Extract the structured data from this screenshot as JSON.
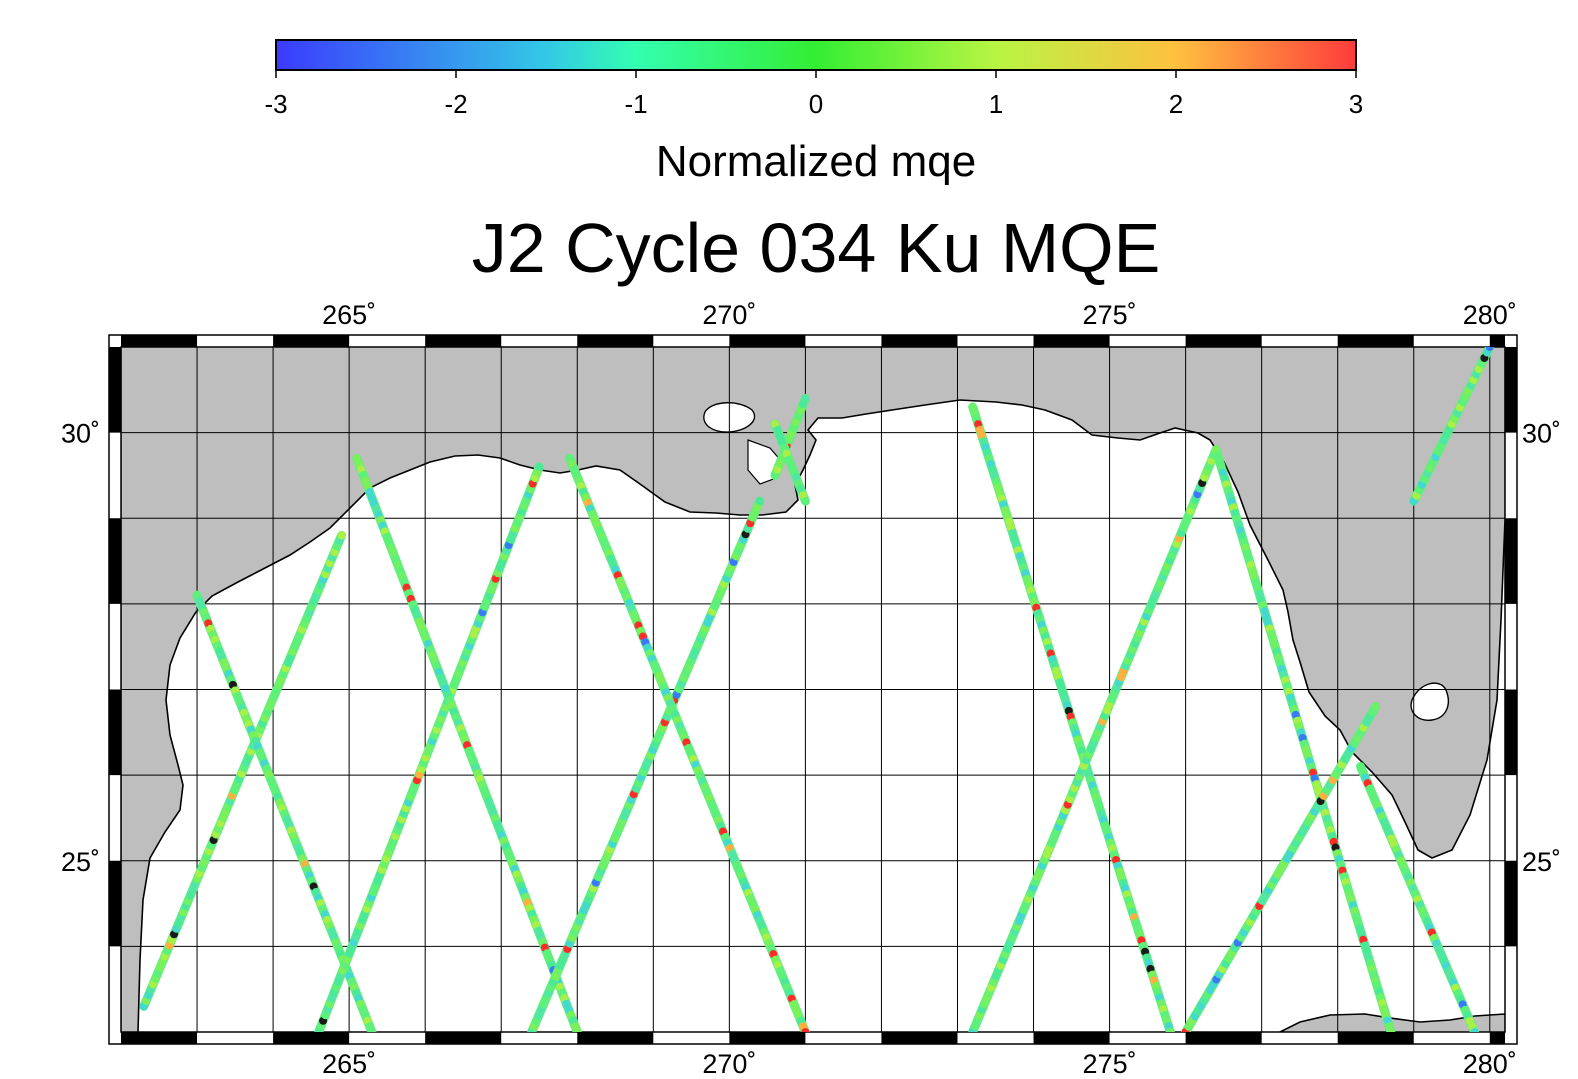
{
  "title": "J2 Cycle 034 Ku MQE",
  "colorbar": {
    "label": "Normalized mqe",
    "min": -3,
    "max": 3,
    "ticks": [
      "-3",
      "-2",
      "-1",
      "0",
      "1",
      "2",
      "3"
    ],
    "stops": [
      {
        "value": -3,
        "color": "#3b3bff"
      },
      {
        "value": -1.5,
        "color": "#33c8e6"
      },
      {
        "value": -1,
        "color": "#33ffb0"
      },
      {
        "value": 0,
        "color": "#33ee33"
      },
      {
        "value": 1,
        "color": "#b8f542"
      },
      {
        "value": 2,
        "color": "#ffc040"
      },
      {
        "value": 3,
        "color": "#ff3b3b"
      }
    ]
  },
  "map": {
    "lon_range": [
      262,
      280.2
    ],
    "lat_range": [
      23,
      31
    ],
    "lon_ticks": [
      {
        "value": 265,
        "label": "265˚"
      },
      {
        "value": 270,
        "label": "270˚"
      },
      {
        "value": 275,
        "label": "275˚"
      },
      {
        "value": 280,
        "label": "280˚"
      }
    ],
    "lat_ticks": [
      {
        "value": 30,
        "label": "30˚"
      },
      {
        "value": 25,
        "label": "25˚"
      }
    ],
    "colors": {
      "land": "#bebebe",
      "water": "#ffffff",
      "coastline": "#000000",
      "grid": "#000000",
      "track_base": "#5ef07a"
    }
  },
  "chart_data": {
    "type": "scatter",
    "variable": "Normalized mqe",
    "tracks": [
      {
        "lon": [
          262.3,
          264.9
        ],
        "lat": [
          23.3,
          28.8
        ]
      },
      {
        "lon": [
          263.0,
          265.3
        ],
        "lat": [
          28.1,
          23.0
        ]
      },
      {
        "lon": [
          264.6,
          267.5
        ],
        "lat": [
          23.0,
          29.6
        ]
      },
      {
        "lon": [
          265.1,
          268.0
        ],
        "lat": [
          29.7,
          23.0
        ]
      },
      {
        "lon": [
          267.4,
          270.4
        ],
        "lat": [
          23.0,
          29.2
        ]
      },
      {
        "lon": [
          267.9,
          271.0
        ],
        "lat": [
          29.7,
          23.0
        ]
      },
      {
        "lon": [
          270.6,
          271.0
        ],
        "lat": [
          29.5,
          30.4
        ]
      },
      {
        "lon": [
          270.6,
          271.0
        ],
        "lat": [
          30.1,
          29.2
        ]
      },
      {
        "lon": [
          273.2,
          275.8
        ],
        "lat": [
          30.3,
          23.0
        ]
      },
      {
        "lon": [
          273.2,
          276.4
        ],
        "lat": [
          23.0,
          29.8
        ]
      },
      {
        "lon": [
          276.4,
          278.7
        ],
        "lat": [
          29.8,
          23.0
        ]
      },
      {
        "lon": [
          276.0,
          278.5
        ],
        "lat": [
          23.0,
          26.8
        ]
      },
      {
        "lon": [
          278.3,
          279.8
        ],
        "lat": [
          26.1,
          23.0
        ]
      },
      {
        "lon": [
          279.0,
          280.0
        ],
        "lat": [
          29.2,
          31.0
        ]
      }
    ]
  }
}
